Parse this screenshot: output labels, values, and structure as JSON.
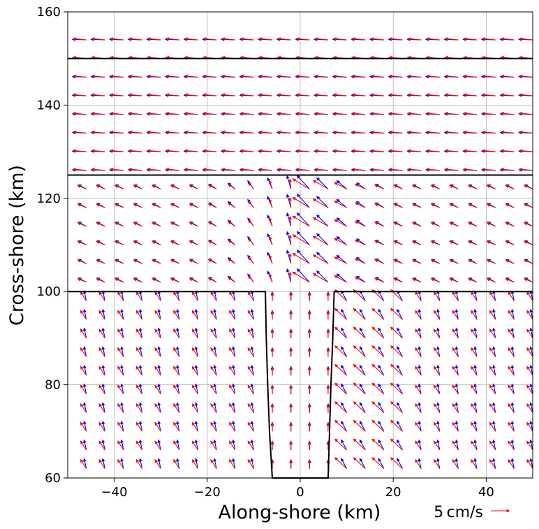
{
  "chart_data": {
    "type": "scatter",
    "plot_style": "quiver",
    "title": "",
    "xlabel": "Along-shore (km)",
    "ylabel": "Cross-shore (km)",
    "xlim": [
      -50,
      50
    ],
    "ylim": [
      60,
      160
    ],
    "xticks": [
      -40,
      -20,
      0,
      20,
      40
    ],
    "xtick_labels": [
      "−40",
      "−20",
      "0",
      "20",
      "40"
    ],
    "yticks": [
      60,
      80,
      100,
      120,
      140,
      160
    ],
    "ytick_labels": [
      "60",
      "80",
      "100",
      "120",
      "140",
      "160"
    ],
    "grid": true,
    "legend": "none",
    "quiver_key": {
      "label": "5 cm/s",
      "speed_cm_s": 5,
      "color": "#ff0000",
      "placement": "bottom-right"
    },
    "series": [
      {
        "color": "#0000ff"
      },
      {
        "color": "#ff0000"
      }
    ],
    "horizontal_lines": [
      150,
      125
    ],
    "coastline": [
      [
        -50,
        100
      ],
      [
        -7.5,
        100
      ],
      [
        -7.3,
        90
      ],
      [
        -7,
        80
      ],
      [
        -6.6,
        70
      ],
      [
        -6,
        60
      ],
      [
        6,
        60
      ],
      [
        6.3,
        70
      ],
      [
        6.6,
        80
      ],
      [
        7,
        90
      ],
      [
        7.3,
        100
      ],
      [
        50,
        100
      ]
    ]
  }
}
